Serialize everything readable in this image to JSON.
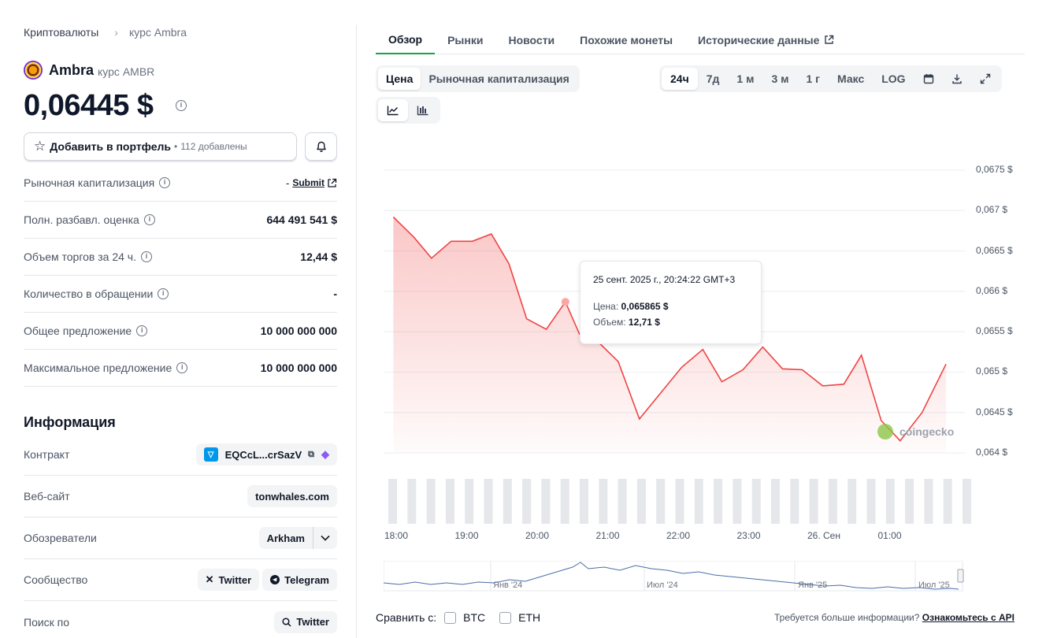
{
  "breadcrumb": {
    "root": "Криптовалюты",
    "current": "курс Ambra"
  },
  "coin": {
    "name": "Ambra",
    "subtitle": "курс AMBR",
    "price": "0,06445 $"
  },
  "portfolio": {
    "label": "Добавить в портфель",
    "bullet": "•",
    "count": "112 добавлены"
  },
  "stats": [
    {
      "label": "Рыночная капитализация",
      "value": "-",
      "link": "Submit"
    },
    {
      "label": "Полн. разбавл. оценка",
      "value": "644 491 541 $"
    },
    {
      "label": "Объем торгов за 24 ч.",
      "value": "12,44 $"
    },
    {
      "label": "Количество в обращении",
      "value": "-"
    },
    {
      "label": "Общее предложение",
      "value": "10 000 000 000"
    },
    {
      "label": "Максимальное предложение",
      "value": "10 000 000 000"
    }
  ],
  "info": {
    "title": "Информация",
    "contract": {
      "label": "Контракт",
      "value": "EQCcL...crSazV"
    },
    "website": {
      "label": "Веб-сайт",
      "value": "tonwhales.com"
    },
    "explorers": {
      "label": "Обозреватели",
      "value": "Arkham"
    },
    "community": {
      "label": "Сообщество",
      "links": [
        "Twitter",
        "Telegram"
      ]
    },
    "search": {
      "label": "Поиск по",
      "value": "Twitter"
    }
  },
  "tabs": [
    "Обзор",
    "Рынки",
    "Новости",
    "Похожие монеты",
    "Исторические данные"
  ],
  "chart_type_options": [
    "Цена",
    "Рыночная капитализация"
  ],
  "range_options": [
    "24ч",
    "7д",
    "1 м",
    "3 м",
    "1 г",
    "Макс",
    "LOG"
  ],
  "tooltip": {
    "date": "25 сент. 2025 г., 20:24:22 GMT+3",
    "price_label": "Цена:",
    "price_value": "0,065865 $",
    "volume_label": "Объем:",
    "volume_value": "12,71 $"
  },
  "watermark": "coingecko",
  "colors": {
    "line": "#ef4444",
    "active_tab": "#16a34a",
    "volume_bar": "#e5e7eb",
    "navigator": "#4a6ea8"
  },
  "chart_data": {
    "type": "line",
    "title": "",
    "y_tick_labels": [
      "0,0675 $",
      "0,067 $",
      "0,0665 $",
      "0,066 $",
      "0,0655 $",
      "0,065 $",
      "0,0645 $",
      "0,064 $"
    ],
    "ylim": [
      0.064,
      0.0675
    ],
    "x_tick_labels": [
      "18:00",
      "19:00",
      "20:00",
      "21:00",
      "22:00",
      "23:00",
      "26. Сен",
      "01:00"
    ],
    "xlim": [
      0,
      7.98
    ],
    "x": [
      -0.04,
      0.25,
      0.5,
      0.78,
      1.08,
      1.35,
      1.6,
      1.85,
      2.13,
      2.4,
      2.6,
      2.88,
      3.15,
      3.45,
      3.75,
      4.05,
      4.35,
      4.62,
      4.92,
      5.2,
      5.48,
      5.76,
      6.05,
      6.35,
      6.6,
      6.88,
      7.15,
      7.46,
      7.8
    ],
    "series": [
      {
        "values": [
          0.06692,
          0.06667,
          0.06641,
          0.06662,
          0.06662,
          0.06671,
          0.06634,
          0.06566,
          0.06553,
          0.06587,
          0.06547,
          0.06536,
          0.06513,
          0.06442,
          0.06474,
          0.06506,
          0.06528,
          0.06488,
          0.06503,
          0.06531,
          0.06504,
          0.06503,
          0.06483,
          0.06485,
          0.06521,
          0.0644,
          0.06415,
          0.0645,
          0.0651
        ]
      }
    ],
    "legend": "none",
    "grid": true
  },
  "navigator_ticks": [
    "Янв '24",
    "Июл '24",
    "Янв '25",
    "Июл '25"
  ],
  "compare": {
    "label": "Сравнить с:",
    "options": [
      "BTC",
      "ETH"
    ]
  },
  "api_note": {
    "text": "Требуется больше информации?",
    "link": "Ознакомьтесь с API"
  }
}
